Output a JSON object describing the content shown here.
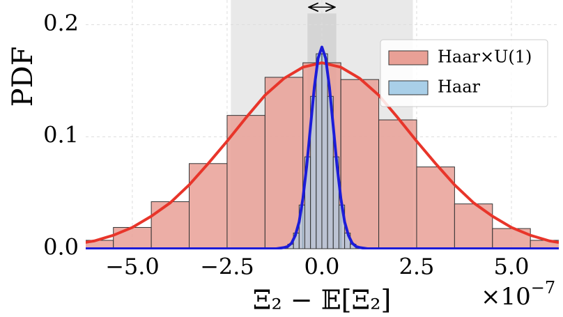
{
  "chart_data": {
    "type": "histogram",
    "x_label": "Ξ₂ − 𝔼[Ξ₂]",
    "y_label": "PDF",
    "x_offset": {
      "base": "×10",
      "exponent": "−7"
    },
    "xlim": [
      -6.23,
      6.25
    ],
    "ylim": [
      0,
      0.222
    ],
    "xticks": [
      {
        "value": -5,
        "label": "−5.0"
      },
      {
        "value": -2.5,
        "label": "−2.5"
      },
      {
        "value": 0,
        "label": "0.0"
      },
      {
        "value": 2.5,
        "label": "2.5"
      },
      {
        "value": 5,
        "label": "5.0"
      }
    ],
    "yticks": [
      {
        "value": 0,
        "label": "0.0"
      },
      0.1,
      0.2
    ],
    "grid": true,
    "legend": "upper right",
    "spans": [
      {
        "xmin": -2.4,
        "xmax": 2.4,
        "color": "#e4e4e4"
      },
      {
        "xmin": -0.38,
        "xmax": 0.38,
        "ymax": 0.21,
        "color": "#cfcfcf"
      }
    ],
    "series": [
      {
        "name": "Haar×U(1)",
        "color": "#e9a096",
        "bins": [
          -6.5,
          -5.5,
          -4.5,
          -3.5,
          -2.5,
          -1.5,
          -0.5,
          0.5,
          1.5,
          2.5,
          3.5,
          4.5,
          5.5,
          6.5
        ],
        "values": [
          0.0075,
          0.019,
          0.042,
          0.076,
          0.119,
          0.153,
          0.166,
          0.151,
          0.115,
          0.073,
          0.04,
          0.018,
          0.0075
        ]
      },
      {
        "name": "Haar",
        "color": "#a9cfe8",
        "bins": [
          -0.9,
          -0.75,
          -0.6,
          -0.45,
          -0.3,
          -0.15,
          0,
          0.15,
          0.3,
          0.45,
          0.6,
          0.75,
          0.9
        ],
        "values": [
          0.004,
          0.014,
          0.039,
          0.082,
          0.136,
          0.174,
          0.174,
          0.136,
          0.082,
          0.039,
          0.014,
          0.004
        ]
      }
    ],
    "curves": [
      {
        "color": "#e8352a",
        "x": [
          -6.25,
          -6,
          -5.5,
          -5,
          -4.5,
          -4,
          -3.5,
          -3,
          -2.5,
          -2,
          -1.5,
          -1,
          -0.5,
          0,
          0.5,
          1,
          1.5,
          2,
          2.5,
          3,
          3.5,
          4,
          4.5,
          5,
          5.5,
          6,
          6.25
        ],
        "values": [
          0.0056,
          0.007,
          0.012,
          0.019,
          0.029,
          0.041,
          0.057,
          0.076,
          0.096,
          0.117,
          0.137,
          0.152,
          0.162,
          0.166,
          0.162,
          0.152,
          0.137,
          0.117,
          0.096,
          0.076,
          0.057,
          0.041,
          0.029,
          0.019,
          0.012,
          0.007,
          0.0056
        ]
      },
      {
        "color": "#1c1cd8",
        "x": [
          -6.23,
          -1.2,
          -1,
          -0.9,
          -0.8,
          -0.7,
          -0.6,
          -0.5,
          -0.4,
          -0.3,
          -0.2,
          -0.1,
          0,
          0.1,
          0.2,
          0.3,
          0.4,
          0.5,
          0.6,
          0.7,
          0.8,
          0.9,
          1,
          1.2,
          6.25
        ],
        "values": [
          0,
          0,
          0.001,
          0.002,
          0.005,
          0.012,
          0.024,
          0.045,
          0.074,
          0.109,
          0.144,
          0.17,
          0.18,
          0.17,
          0.144,
          0.109,
          0.074,
          0.045,
          0.024,
          0.012,
          0.005,
          0.002,
          0.001,
          0,
          0
        ]
      }
    ]
  }
}
